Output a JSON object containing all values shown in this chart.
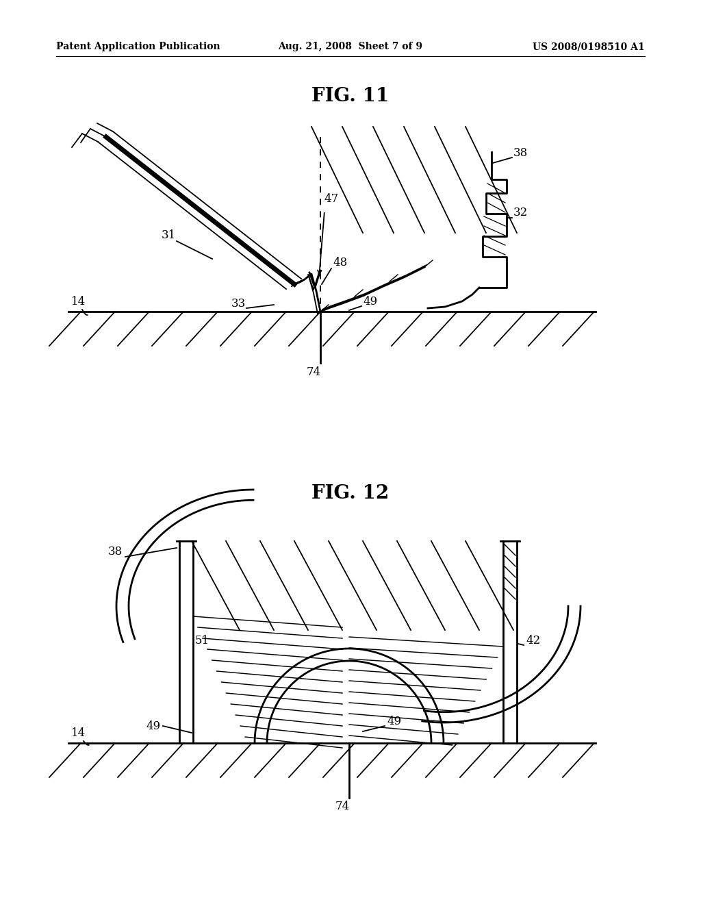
{
  "bg_color": "#ffffff",
  "page_width": 10.24,
  "page_height": 13.2,
  "header_left": "Patent Application Publication",
  "header_center": "Aug. 21, 2008  Sheet 7 of 9",
  "header_right": "US 2008/0198510 A1",
  "label_fontsize": 12,
  "title_fontsize": 20,
  "header_fontsize": 10
}
